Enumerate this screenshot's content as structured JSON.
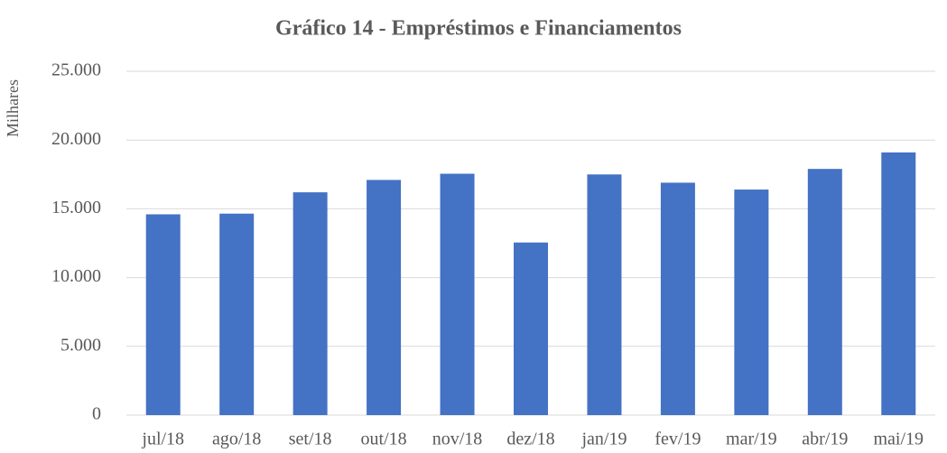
{
  "chart_data": {
    "type": "bar",
    "title": "Gráfico 14 - Empréstimos e Financiamentos",
    "y_label": "Milhares",
    "categories": [
      "jul/18",
      "ago/18",
      "set/18",
      "out/18",
      "nov/18",
      "dez/18",
      "jan/19",
      "fev/19",
      "mar/19",
      "abr/19",
      "mai/19"
    ],
    "values": [
      14600,
      14650,
      16200,
      17100,
      17550,
      12550,
      17500,
      16900,
      16400,
      17900,
      19100
    ],
    "color": "#4472c4",
    "ylim": [
      0,
      25000
    ],
    "yticks": [
      0,
      {
        "value": 5000,
        "label": "5.000"
      },
      {
        "value": 10000,
        "label": "10.000"
      },
      {
        "value": 15000,
        "label": "15.000"
      },
      {
        "value": 20000,
        "label": "20.000"
      },
      {
        "value": 25000,
        "label": "25.000"
      }
    ],
    "grid": true
  }
}
